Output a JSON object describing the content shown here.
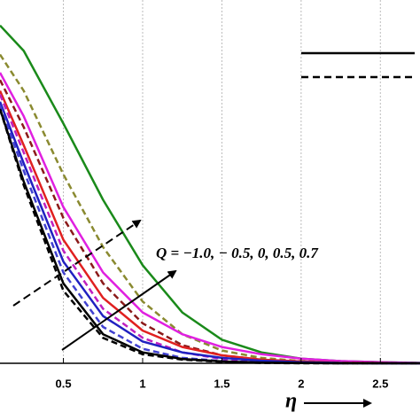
{
  "chart_data": {
    "type": "line",
    "x_label": "η",
    "annotation": "Q = −1.0, − 0.5, 0, 0.5, 0.7",
    "x": [
      0.1,
      0.25,
      0.5,
      0.75,
      1.0,
      1.25,
      1.5,
      1.75,
      2.0,
      2.25,
      2.5,
      2.75
    ],
    "xlim": [
      0.1,
      2.75
    ],
    "ylim": [
      0,
      1
    ],
    "xticks": [
      0.5,
      1.0,
      1.5,
      2.0,
      2.5
    ],
    "grid": true,
    "series": [
      {
        "color": "#1a8a1a",
        "dash": false,
        "values": [
          0.93,
          0.86,
          0.66,
          0.45,
          0.27,
          0.14,
          0.065,
          0.03,
          0.013,
          0.006,
          0.003,
          0.001
        ]
      },
      {
        "color": "#8a8a30",
        "dash": true,
        "values": [
          0.85,
          0.75,
          0.52,
          0.32,
          0.17,
          0.08,
          0.035,
          0.015,
          0.006,
          0.003,
          0.001,
          0
        ]
      },
      {
        "color": "#e020e0",
        "dash": false,
        "values": [
          0.8,
          0.68,
          0.43,
          0.25,
          0.14,
          0.08,
          0.045,
          0.025,
          0.013,
          0.006,
          0.003,
          0.001
        ]
      },
      {
        "color": "#8b1a1a",
        "dash": true,
        "values": [
          0.78,
          0.65,
          0.4,
          0.22,
          0.11,
          0.05,
          0.022,
          0.01,
          0.004,
          0.002,
          0.001,
          0
        ]
      },
      {
        "color": "#e02020",
        "dash": false,
        "values": [
          0.75,
          0.6,
          0.34,
          0.18,
          0.09,
          0.045,
          0.022,
          0.01,
          0.005,
          0.002,
          0.001,
          0
        ]
      },
      {
        "color": "#c020c0",
        "dash": true,
        "values": [
          0.74,
          0.58,
          0.31,
          0.15,
          0.07,
          0.03,
          0.012,
          0.005,
          0.002,
          0.001,
          0,
          0
        ]
      },
      {
        "color": "#2020c0",
        "dash": false,
        "values": [
          0.72,
          0.55,
          0.28,
          0.13,
          0.06,
          0.03,
          0.015,
          0.007,
          0.003,
          0.001,
          0,
          0
        ]
      },
      {
        "color": "#4040d0",
        "dash": true,
        "values": [
          0.71,
          0.53,
          0.25,
          0.1,
          0.04,
          0.015,
          0.006,
          0.002,
          0.001,
          0,
          0,
          0
        ]
      },
      {
        "color": "#000000",
        "dash": false,
        "values": [
          0.7,
          0.5,
          0.22,
          0.08,
          0.03,
          0.012,
          0.005,
          0.002,
          0.001,
          0,
          0,
          0
        ]
      },
      {
        "color": "#000000",
        "dash": true,
        "values": [
          0.7,
          0.49,
          0.2,
          0.07,
          0.025,
          0.01,
          0.004,
          0.001,
          0,
          0,
          0,
          0
        ]
      }
    ]
  }
}
